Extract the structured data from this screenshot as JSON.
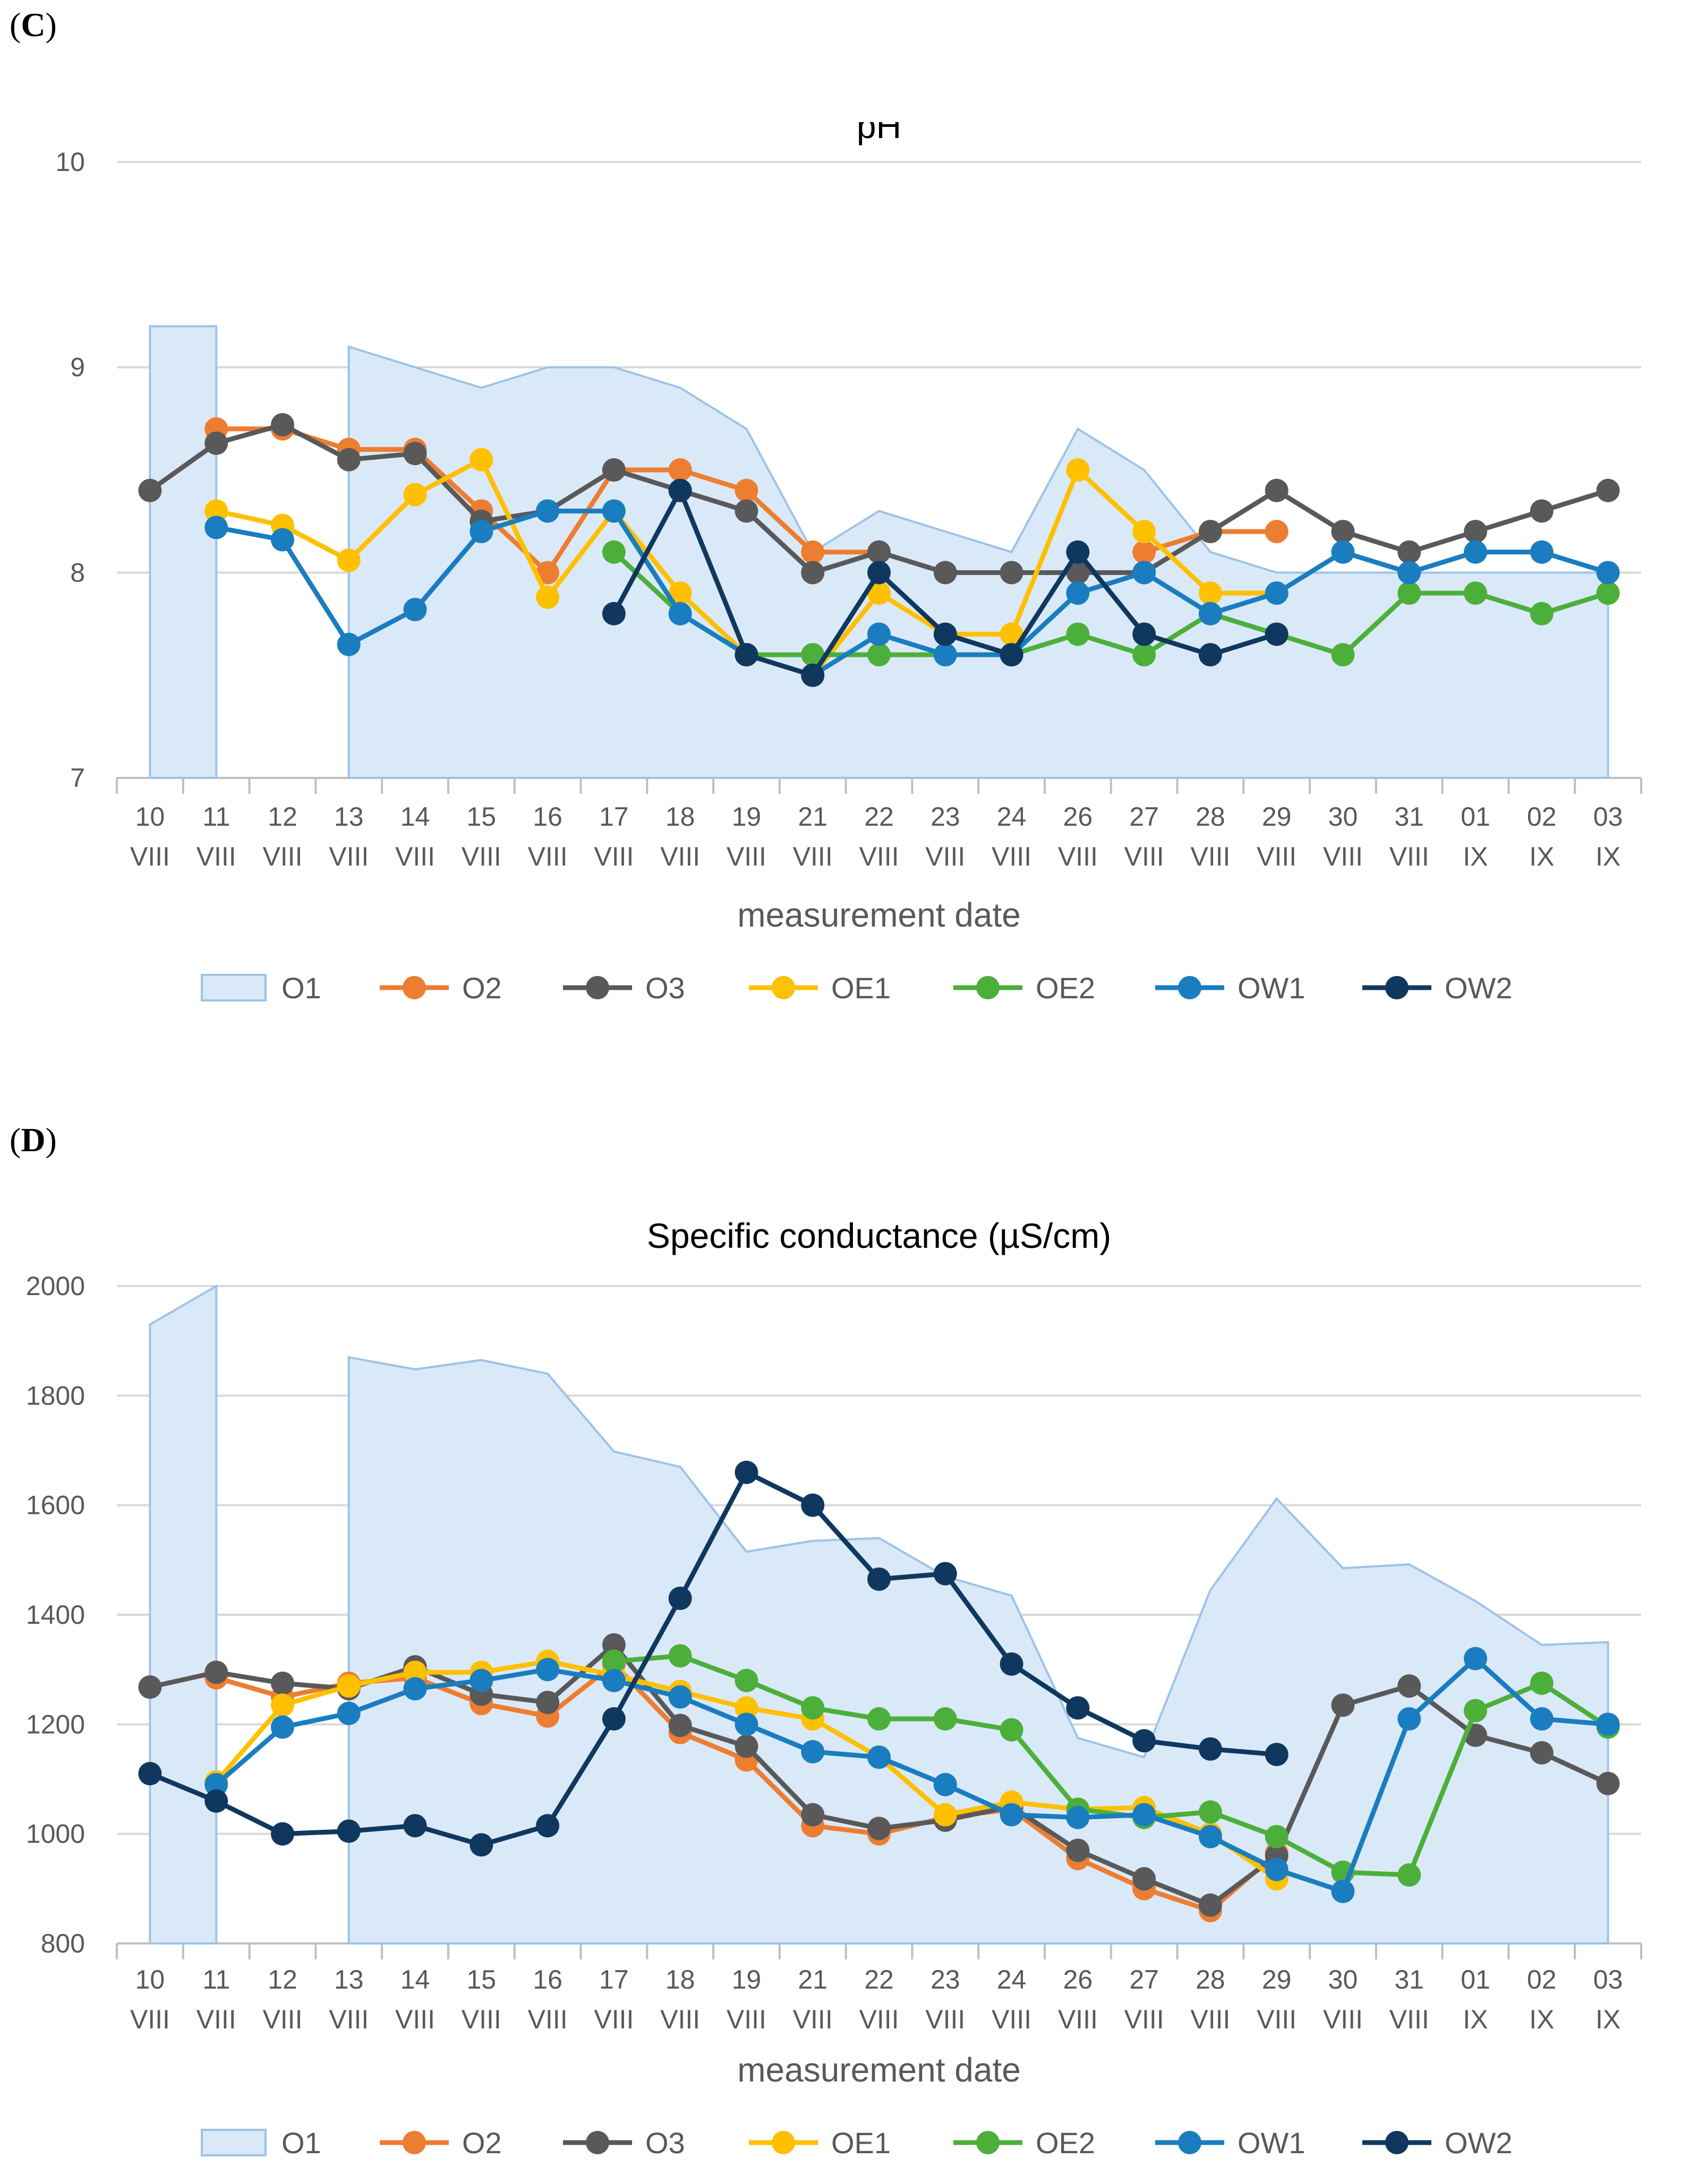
{
  "panels": {
    "c": {
      "prefix": "(",
      "letter": "C",
      "suffix": ")"
    },
    "d": {
      "prefix": "(",
      "letter": "D",
      "suffix": ")"
    }
  },
  "colors": {
    "O1_fill": "#dae9f8",
    "O1_line": "#9dc3e6",
    "O2": "#ed7d31",
    "O3": "#595959",
    "OE1": "#ffc000",
    "OE2": "#4caf3a",
    "OW1": "#1a7dc0",
    "OW2": "#10385f",
    "grid": "#d9d9d9",
    "axis": "#bfbfbf"
  },
  "chart_data": [
    {
      "id": "ph",
      "type": "line",
      "title": "pH",
      "xlabel": "measurement date",
      "ylabel": "",
      "ylim": [
        7,
        10
      ],
      "yticks": [
        7,
        8,
        9,
        10
      ],
      "categories": [
        [
          "10",
          "VIII"
        ],
        [
          "11",
          "VIII"
        ],
        [
          "12",
          "VIII"
        ],
        [
          "13",
          "VIII"
        ],
        [
          "14",
          "VIII"
        ],
        [
          "15",
          "VIII"
        ],
        [
          "16",
          "VIII"
        ],
        [
          "17",
          "VIII"
        ],
        [
          "18",
          "VIII"
        ],
        [
          "19",
          "VIII"
        ],
        [
          "21",
          "VIII"
        ],
        [
          "22",
          "VIII"
        ],
        [
          "23",
          "VIII"
        ],
        [
          "24",
          "VIII"
        ],
        [
          "26",
          "VIII"
        ],
        [
          "27",
          "VIII"
        ],
        [
          "28",
          "VIII"
        ],
        [
          "29",
          "VIII"
        ],
        [
          "30",
          "VIII"
        ],
        [
          "31",
          "VIII"
        ],
        [
          "01",
          "IX"
        ],
        [
          "02",
          "IX"
        ],
        [
          "03",
          "IX"
        ]
      ],
      "area": {
        "name": "O1",
        "values": [
          9.2,
          9.2,
          null,
          9.1,
          9.0,
          8.9,
          9.0,
          9.0,
          8.9,
          8.7,
          8.1,
          8.3,
          8.2,
          8.1,
          8.7,
          8.5,
          8.1,
          8.0,
          8.0,
          8.0,
          8.0,
          8.0,
          8.0
        ]
      },
      "series": [
        {
          "name": "O2",
          "values": [
            null,
            8.7,
            8.7,
            8.6,
            8.6,
            8.3,
            8.0,
            8.5,
            8.5,
            8.4,
            8.1,
            8.1,
            null,
            null,
            null,
            8.1,
            8.2,
            8.2,
            null,
            null,
            null,
            null,
            null
          ]
        },
        {
          "name": "O3",
          "values": [
            8.4,
            8.63,
            8.72,
            8.55,
            8.58,
            8.25,
            8.3,
            8.5,
            8.4,
            8.3,
            8.0,
            8.1,
            8.0,
            8.0,
            8.0,
            8.0,
            8.2,
            8.4,
            8.2,
            8.1,
            8.2,
            8.3,
            8.4
          ]
        },
        {
          "name": "OE1",
          "values": [
            null,
            8.3,
            8.23,
            8.06,
            8.38,
            8.55,
            7.88,
            8.3,
            7.9,
            7.6,
            7.5,
            7.9,
            7.7,
            7.7,
            8.5,
            8.2,
            7.9,
            7.9,
            null,
            null,
            null,
            null,
            null
          ]
        },
        {
          "name": "OE2",
          "values": [
            null,
            null,
            null,
            null,
            null,
            null,
            null,
            8.1,
            7.8,
            7.6,
            7.6,
            7.6,
            7.6,
            7.6,
            7.7,
            7.6,
            7.8,
            7.7,
            7.6,
            7.9,
            7.9,
            7.8,
            7.9
          ]
        },
        {
          "name": "OW1",
          "values": [
            null,
            8.22,
            8.16,
            7.65,
            7.82,
            8.2,
            8.3,
            8.3,
            7.8,
            7.6,
            7.5,
            7.7,
            7.6,
            7.6,
            7.9,
            8.0,
            7.8,
            7.9,
            8.1,
            8.0,
            8.1,
            8.1,
            8.0
          ]
        },
        {
          "name": "OW2",
          "values": [
            null,
            null,
            null,
            null,
            null,
            null,
            null,
            7.8,
            8.4,
            7.6,
            7.5,
            8.0,
            7.7,
            7.6,
            8.1,
            7.7,
            7.6,
            7.7,
            null,
            null,
            null,
            null,
            null
          ]
        }
      ],
      "legend": [
        "O1",
        "O2",
        "O3",
        "OE1",
        "OE2",
        "OW1",
        "OW2"
      ]
    },
    {
      "id": "sc",
      "type": "line",
      "title": "Specific conductance (µS/cm)",
      "xlabel": "measurement date",
      "ylabel": "",
      "ylim": [
        800,
        2000
      ],
      "yticks": [
        800,
        1000,
        1200,
        1400,
        1600,
        1800,
        2000
      ],
      "categories": [
        [
          "10",
          "VIII"
        ],
        [
          "11",
          "VIII"
        ],
        [
          "12",
          "VIII"
        ],
        [
          "13",
          "VIII"
        ],
        [
          "14",
          "VIII"
        ],
        [
          "15",
          "VIII"
        ],
        [
          "16",
          "VIII"
        ],
        [
          "17",
          "VIII"
        ],
        [
          "18",
          "VIII"
        ],
        [
          "19",
          "VIII"
        ],
        [
          "21",
          "VIII"
        ],
        [
          "22",
          "VIII"
        ],
        [
          "23",
          "VIII"
        ],
        [
          "24",
          "VIII"
        ],
        [
          "26",
          "VIII"
        ],
        [
          "27",
          "VIII"
        ],
        [
          "28",
          "VIII"
        ],
        [
          "29",
          "VIII"
        ],
        [
          "30",
          "VIII"
        ],
        [
          "31",
          "VIII"
        ],
        [
          "01",
          "IX"
        ],
        [
          "02",
          "IX"
        ],
        [
          "03",
          "IX"
        ]
      ],
      "area": {
        "name": "O1",
        "values": [
          1930,
          2010,
          null,
          1870,
          1848,
          1865,
          1840,
          1698,
          1670,
          1515,
          1535,
          1540,
          1470,
          1435,
          1175,
          1140,
          1445,
          1612,
          1485,
          1492,
          1425,
          1345,
          1350
        ]
      },
      "series": [
        {
          "name": "O2",
          "values": [
            null,
            1285,
            1250,
            1275,
            1285,
            1238,
            1215,
            1310,
            1185,
            1135,
            1015,
            1000,
            1030,
            1045,
            955,
            900,
            860,
            965,
            null,
            null,
            null,
            null,
            null
          ]
        },
        {
          "name": "O3",
          "values": [
            1268,
            1295,
            1275,
            1265,
            1305,
            1255,
            1240,
            1345,
            1198,
            1160,
            1035,
            1010,
            1025,
            1050,
            970,
            918,
            870,
            960,
            1235,
            1270,
            1180,
            1148,
            1092
          ]
        },
        {
          "name": "OE1",
          "values": [
            null,
            1095,
            1235,
            1270,
            1295,
            1295,
            1315,
            1290,
            1260,
            1230,
            1210,
            1140,
            1035,
            1058,
            1045,
            1048,
            1000,
            918,
            null,
            null,
            null,
            null,
            null
          ]
        },
        {
          "name": "OE2",
          "values": [
            null,
            null,
            null,
            null,
            null,
            null,
            null,
            1315,
            1325,
            1280,
            1230,
            1210,
            1210,
            1190,
            1045,
            1030,
            1040,
            995,
            930,
            925,
            1225,
            1275,
            1195
          ]
        },
        {
          "name": "OW1",
          "values": [
            null,
            1090,
            1195,
            1220,
            1265,
            1280,
            1300,
            1280,
            1250,
            1200,
            1150,
            1140,
            1090,
            1035,
            1030,
            1035,
            995,
            935,
            895,
            1210,
            1320,
            1210,
            1200
          ]
        },
        {
          "name": "OW2",
          "values": [
            1110,
            1060,
            1000,
            1005,
            1015,
            980,
            1015,
            1210,
            1430,
            1660,
            1600,
            1465,
            1475,
            1310,
            1230,
            1170,
            1155,
            1145,
            null,
            null,
            null,
            null,
            null
          ]
        }
      ],
      "legend": [
        "O1",
        "O2",
        "O3",
        "OE1",
        "OE2",
        "OW1",
        "OW2"
      ]
    }
  ]
}
